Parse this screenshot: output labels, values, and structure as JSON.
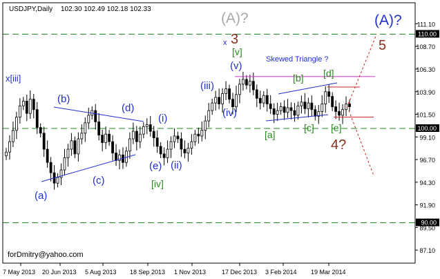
{
  "header": {
    "symbol": "USDJPY,Daily",
    "ohlc": "102.30 102.49 102.18 102.33"
  },
  "watermark": "forDmitry@yahoo.com",
  "colors": {
    "background": "#ffffff",
    "frame": "#000000",
    "candles": "#000000",
    "blue": "#1f2fd0",
    "green": "#2a8a1f",
    "darkred": "#8b2e1e",
    "gray": "#a8a8a8",
    "magenta": "#cc33cc",
    "red": "#cc2222",
    "dashed_green": "#1f8a1f"
  },
  "chart_data": {
    "type": "candlestick",
    "ylim": [
      85.72,
      113.33
    ],
    "price_ticks": [
      "111.10",
      "108.70",
      "106.30",
      "103.90",
      "101.50",
      "99.10",
      "96.70",
      "94.30",
      "91.90",
      "89.50",
      "87.10"
    ],
    "date_ticks": [
      "7 May 2013",
      "20 Jun 2013",
      "5 Aug 2013",
      "18 Sep 2013",
      "1 Nov 2013",
      "17 Dec 2013",
      "3 Feb 2014",
      "19 Mar 2014"
    ],
    "horizontal_levels": [
      {
        "price": 110.0,
        "label": "110.00",
        "style": "dashed-green"
      },
      {
        "price": 100.0,
        "label": "100.00",
        "style": "dashed-green"
      },
      {
        "price": 90.0,
        "label": "90.00",
        "style": "dashed-green"
      }
    ],
    "resistance_magenta": 105.5,
    "support_red": 101.2,
    "close_series": [
      97.5,
      98.6,
      99.8,
      101.2,
      102.4,
      102.9,
      101.6,
      103.1,
      102.0,
      100.1,
      99.5,
      97.8,
      96.4,
      95.3,
      94.2,
      94.8,
      95.6,
      96.9,
      97.8,
      98.7,
      97.3,
      98.9,
      99.5,
      100.6,
      101.4,
      101.9,
      100.7,
      99.3,
      98.5,
      99.4,
      98.6,
      97.4,
      96.6,
      97.2,
      96.4,
      97.6,
      98.9,
      99.7,
      98.6,
      99.4,
      100.2,
      100.4,
      99.7,
      99.0,
      98.1,
      97.3,
      96.9,
      97.8,
      98.6,
      99.2,
      98.9,
      97.8,
      97.4,
      97.9,
      98.6,
      99.4,
      99.2,
      99.8,
      100.8,
      101.9,
      102.7,
      103.3,
      102.6,
      103.7,
      104.2,
      103.1,
      102.3,
      103.6,
      104.7,
      105.2,
      104.6,
      105.0,
      104.1,
      103.2,
      102.7,
      103.5,
      102.6,
      102.1,
      101.5,
      101.9,
      102.3,
      101.7,
      102.2,
      101.9,
      101.4,
      102.4,
      102.8,
      102.1,
      102.7,
      102.0,
      101.3,
      101.8,
      102.6,
      103.9,
      103.4,
      102.3,
      101.8,
      101.4,
      102.0,
      102.6,
      102.3
    ],
    "wave_labels": [
      {
        "text": "x[iii]",
        "color": "blue"
      },
      {
        "text": "(a)",
        "color": "blue"
      },
      {
        "text": "(b)",
        "color": "blue"
      },
      {
        "text": "(c)",
        "color": "blue"
      },
      {
        "text": "(d)",
        "color": "blue"
      },
      {
        "text": "(e)",
        "color": "blue"
      },
      {
        "text": "[iv]",
        "color": "green"
      },
      {
        "text": "(i)",
        "color": "blue"
      },
      {
        "text": "(ii)",
        "color": "blue"
      },
      {
        "text": "(iii)",
        "color": "blue"
      },
      {
        "text": "(iv)",
        "color": "blue"
      },
      {
        "text": "(v)",
        "color": "blue"
      },
      {
        "text": "[v]",
        "color": "green"
      },
      {
        "text": "x",
        "color": "blue"
      },
      {
        "text": "3",
        "color": "darkred"
      },
      {
        "text": "(A)?",
        "color": "gray"
      },
      {
        "text": "(A)?",
        "color": "blue"
      },
      {
        "text": "5",
        "color": "darkred"
      },
      {
        "text": "4?",
        "color": "darkred"
      },
      {
        "text": "[a]",
        "color": "green"
      },
      {
        "text": "[b]",
        "color": "green"
      },
      {
        "text": "[c]",
        "color": "green"
      },
      {
        "text": "[d]",
        "color": "green"
      },
      {
        "text": "[e]",
        "color": "green"
      },
      {
        "text": "Skewed Triangle ?",
        "color": "blue"
      }
    ]
  }
}
